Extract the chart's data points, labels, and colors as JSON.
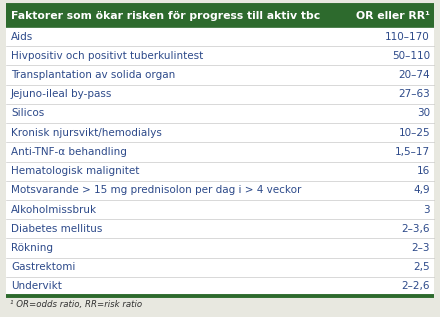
{
  "header_left": "Faktorer som ökar risken för progress till aktiv tbc",
  "header_right": "OR eller RR¹",
  "rows": [
    [
      "Aids",
      "110–170"
    ],
    [
      "Hivpositiv och positivt tuberkulintest",
      "50–110"
    ],
    [
      "Transplantation av solida organ",
      "20–74"
    ],
    [
      "Jejuno-ileal by-pass",
      "27–63"
    ],
    [
      "Silicos",
      "30"
    ],
    [
      "Kronisk njursvikt/hemodialys",
      "10–25"
    ],
    [
      "Anti-TNF-α behandling",
      "1,5–17"
    ],
    [
      "Hematologisk malignitet",
      "16"
    ],
    [
      "Motsvarande > 15 mg prednisolon per dag i > 4 veckor",
      "4,9"
    ],
    [
      "Alkoholmissbruk",
      "3"
    ],
    [
      "Diabetes mellitus",
      "2–3,6"
    ],
    [
      "Rökning",
      "2–3"
    ],
    [
      "Gastrektomi",
      "2,5"
    ],
    [
      "Undervikt",
      "2–2,6"
    ]
  ],
  "footnote": "¹ OR=odds ratio, RR=risk ratio",
  "outer_bg": "#e8e8e0",
  "header_bg": "#2d6a2d",
  "header_text_color": "#ffffff",
  "row_text_color": "#2d4a8a",
  "border_color": "#2d6a2d",
  "table_bg": "#ffffff",
  "footnote_color": "#333333",
  "header_fontsize": 7.8,
  "row_fontsize": 7.5,
  "footnote_fontsize": 6.2
}
